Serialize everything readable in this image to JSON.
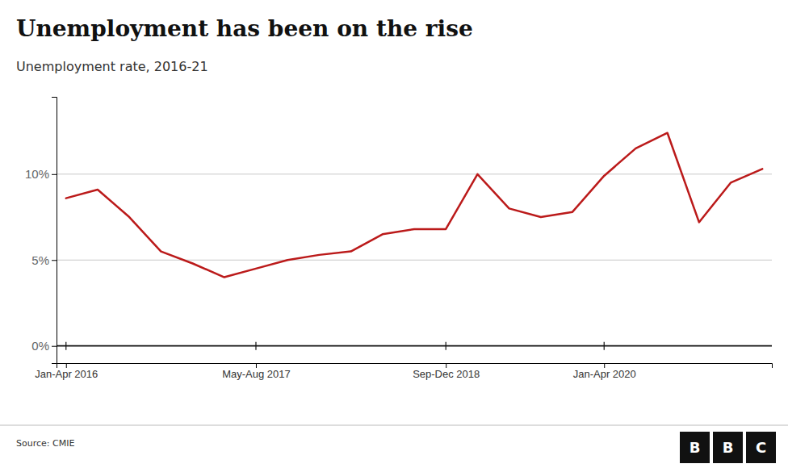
{
  "chart_data": {
    "type": "line",
    "title": "Unemployment has been on the rise",
    "subtitle": "Unemployment rate, 2016-21",
    "source": "Source: CMIE",
    "annotations": [
      "B",
      "B",
      "C"
    ],
    "x": [
      0,
      1,
      2,
      3,
      4,
      5,
      6,
      7,
      8,
      9,
      10,
      11,
      12,
      13,
      14,
      15,
      16,
      17,
      18,
      19,
      20,
      21,
      22
    ],
    "values": [
      8.6,
      9.1,
      7.5,
      5.5,
      4.8,
      4.0,
      4.5,
      5.0,
      5.3,
      5.5,
      6.5,
      6.8,
      6.8,
      10.0,
      8.0,
      7.5,
      7.8,
      9.9,
      11.5,
      12.4,
      7.2,
      9.5,
      10.3
    ],
    "color": "#bb1a1a",
    "xlim": [
      -0.3,
      22.3
    ],
    "xticks": [
      {
        "value": 0,
        "label": "Jan-Apr 2016"
      },
      {
        "value": 6,
        "label": "May-Aug 2017"
      },
      {
        "value": 12,
        "label": "Sep-Dec 2018"
      },
      {
        "value": 17,
        "label": "Jan-Apr 2020"
      }
    ],
    "ylim": [
      -1.0,
      14.5
    ],
    "yticks": [
      {
        "value": 0,
        "label": "0%"
      },
      {
        "value": 5,
        "label": "5%"
      },
      {
        "value": 10,
        "label": "10%"
      }
    ],
    "grid": true
  }
}
